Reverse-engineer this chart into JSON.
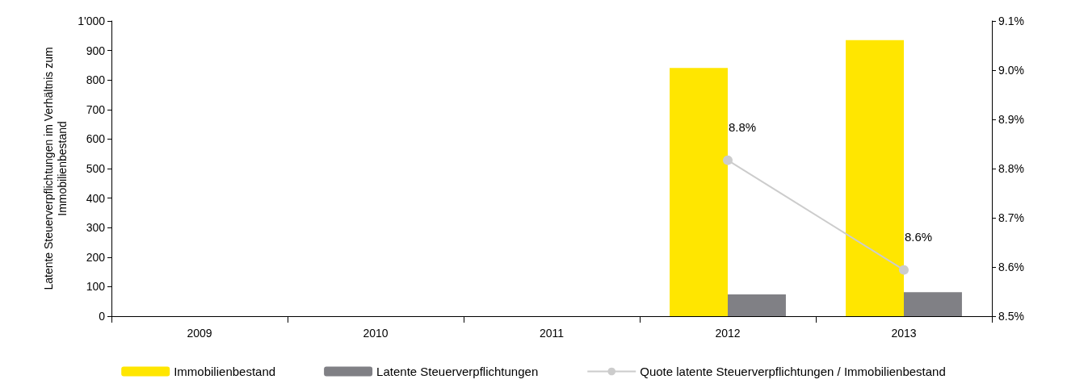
{
  "chart_data": {
    "type": "bar",
    "ylabel": "Latente Steuerverpflichtungen im Verhältnis zum\nImmobilienbestand",
    "categories": [
      "2009",
      "2010",
      "2011",
      "2012",
      "2013"
    ],
    "series": [
      {
        "name": "Immobilienbestand",
        "color": "#ffe600",
        "values": [
          null,
          null,
          null,
          841,
          935
        ]
      },
      {
        "name": "Latente Steuerverpflichtungen",
        "color": "#808085",
        "values": [
          null,
          null,
          null,
          74,
          81
        ]
      },
      {
        "name": "Quote latente Steuerverpflichtungen / Immobilienbestand",
        "type": "line",
        "axis": "y2",
        "color": "#cccccc",
        "marker": "circle",
        "values": [
          null,
          null,
          null,
          8.817,
          8.594
        ],
        "value_labels": [
          null,
          null,
          null,
          "8.8%",
          "8.6%"
        ]
      }
    ],
    "ylim": [
      0,
      1000
    ],
    "yticks": [
      0,
      100,
      200,
      300,
      400,
      500,
      600,
      700,
      800,
      900,
      {
        "value": 1000,
        "label": "1'000"
      }
    ],
    "y2lim": [
      8.5,
      9.1
    ],
    "y2ticks": [
      {
        "value": 8.5,
        "label": "8.5%"
      },
      {
        "value": 8.6,
        "label": "8.6%"
      },
      {
        "value": 8.7,
        "label": "8.7%"
      },
      {
        "value": 8.8,
        "label": "8.8%"
      },
      {
        "value": 8.9,
        "label": "8.9%"
      },
      {
        "value": 9.0,
        "label": "9.0%"
      },
      {
        "value": 9.1,
        "label": "9.1%"
      }
    ],
    "grid": false,
    "legend": "bottom"
  }
}
